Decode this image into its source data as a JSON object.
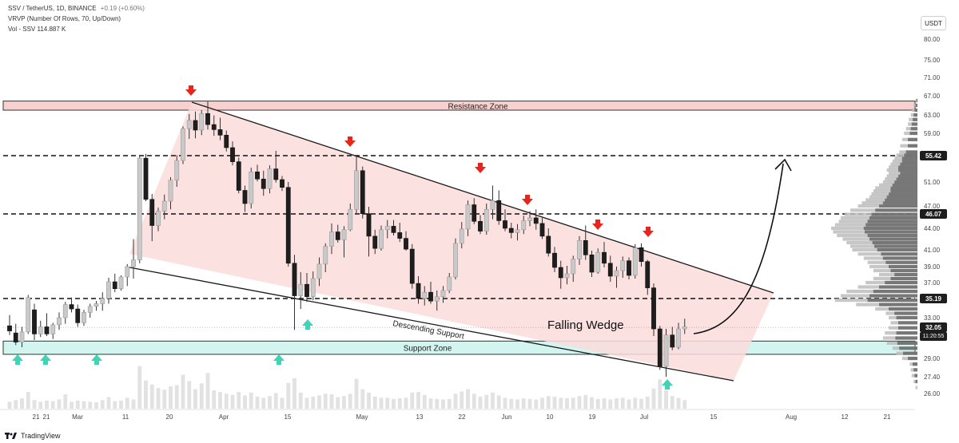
{
  "header": {
    "symbol_line": "SSV / TetherUS, 1D, BINANCE",
    "change": "+0.19 (+0.60%)",
    "vrvp_line": "VRVP (Number Of Rows, 70, Up/Down)",
    "vol_line": "Vol - SSV  114.887 K"
  },
  "currency_button": "USDT",
  "brand": "TradingView",
  "colors": {
    "bull": "#c9c9c9",
    "bear": "#1e1e1e",
    "resistance_fill": "#f8d0d0",
    "resistance_border": "#d9534f",
    "support_fill": "#d2f5f0",
    "support_border": "#1a1a1a",
    "wedge_fill": "#fbdcdc",
    "down_arrow": "#e8251d",
    "up_arrow": "#3ed4b5",
    "price_badge": "#1e1e1e"
  },
  "chart_data": {
    "type": "candlestick",
    "y_axis_ticks": [
      "80.00",
      "75.00",
      "71.00",
      "67.00",
      "63.00",
      "59.00",
      "55.42",
      "51.00",
      "47.00",
      "46.07",
      "44.00",
      "41.00",
      "39.00",
      "37.00",
      "35.19",
      "33.00",
      "32.05",
      "29.00",
      "27.40",
      "26.00"
    ],
    "x_axis_ticks": [
      "21",
      "21",
      "Mar",
      "11",
      "20",
      "Apr",
      "15",
      "May",
      "13",
      "22",
      "Jun",
      "10",
      "19",
      "Jul",
      "15",
      "Aug",
      "12",
      "21"
    ],
    "ylim": [
      25,
      83
    ],
    "price_levels": [
      55.42,
      46.07,
      35.19
    ],
    "current_price": "32.05",
    "countdown": "11:20:55",
    "zones": [
      {
        "label": "Resistance Zone",
        "low": 64,
        "high": 65.9
      },
      {
        "label": "Support Zone",
        "low": 29.4,
        "high": 30.7
      }
    ],
    "annotations": {
      "pattern": "Falling Wedge",
      "support_line": "Descending Support"
    },
    "ohlc": [
      [
        32.2,
        33.3,
        31.3,
        31.7
      ],
      [
        31.5,
        32.4,
        30.3,
        30.6
      ],
      [
        30.6,
        32.1,
        30.1,
        31.6
      ],
      [
        31.6,
        35.6,
        31.4,
        35.3
      ],
      [
        33.9,
        34.6,
        30.8,
        31.4
      ],
      [
        31.4,
        32.7,
        31.1,
        32.1
      ],
      [
        32.1,
        33.5,
        31.2,
        31.4
      ],
      [
        31.4,
        32.5,
        30.9,
        32.3
      ],
      [
        32.3,
        33.6,
        31.8,
        33.0
      ],
      [
        33.0,
        34.8,
        32.4,
        34.5
      ],
      [
        34.5,
        35.3,
        33.6,
        34.0
      ],
      [
        34.0,
        34.5,
        32.1,
        32.5
      ],
      [
        32.5,
        33.9,
        32.2,
        33.6
      ],
      [
        33.6,
        34.6,
        33.0,
        34.3
      ],
      [
        34.3,
        34.9,
        33.8,
        34.6
      ],
      [
        34.6,
        35.9,
        33.8,
        35.2
      ],
      [
        35.2,
        37.6,
        34.6,
        37.1
      ],
      [
        37.1,
        38.1,
        35.9,
        36.3
      ],
      [
        36.3,
        37.9,
        36.1,
        37.7
      ],
      [
        37.7,
        39.3,
        36.6,
        39.0
      ],
      [
        39.0,
        42.5,
        37.5,
        39.8
      ],
      [
        39.8,
        55.4,
        39.4,
        55.0
      ],
      [
        55.0,
        55.7,
        47.8,
        48.1
      ],
      [
        48.1,
        49.0,
        42.2,
        44.4
      ],
      [
        44.4,
        46.8,
        43.6,
        46.4
      ],
      [
        46.4,
        48.9,
        45.3,
        47.8
      ],
      [
        47.8,
        51.8,
        46.6,
        51.3
      ],
      [
        51.3,
        55.5,
        50.2,
        54.6
      ],
      [
        54.6,
        60.5,
        54.0,
        60.0
      ],
      [
        60.0,
        63.2,
        58.1,
        61.8
      ],
      [
        61.8,
        63.7,
        58.2,
        59.7
      ],
      [
        59.7,
        64.0,
        58.7,
        63.3
      ],
      [
        63.3,
        65.8,
        59.8,
        60.9
      ],
      [
        60.9,
        62.9,
        58.6,
        59.8
      ],
      [
        59.8,
        62.4,
        57.9,
        58.7
      ],
      [
        58.7,
        59.6,
        56.1,
        56.7
      ],
      [
        56.7,
        57.7,
        53.8,
        54.4
      ],
      [
        54.4,
        55.1,
        49.1,
        49.6
      ],
      [
        49.6,
        50.4,
        46.3,
        47.4
      ],
      [
        47.4,
        53.4,
        46.7,
        52.7
      ],
      [
        52.7,
        53.9,
        51.1,
        51.5
      ],
      [
        51.5,
        52.9,
        48.7,
        49.9
      ],
      [
        49.9,
        53.8,
        49.1,
        53.2
      ],
      [
        53.2,
        56.2,
        50.9,
        51.4
      ],
      [
        51.4,
        52.0,
        49.5,
        50.1
      ],
      [
        50.1,
        51.0,
        39.0,
        39.4
      ],
      [
        39.4,
        40.4,
        31.8,
        35.5
      ],
      [
        35.5,
        38.3,
        34.0,
        36.8
      ],
      [
        36.8,
        38.2,
        34.8,
        35.4
      ],
      [
        35.4,
        38.4,
        35.0,
        37.5
      ],
      [
        37.5,
        40.1,
        36.6,
        39.3
      ],
      [
        39.3,
        41.9,
        38.3,
        41.5
      ],
      [
        41.5,
        44.7,
        40.5,
        43.5
      ],
      [
        43.5,
        44.5,
        42.0,
        42.4
      ],
      [
        42.4,
        44.3,
        40.1,
        43.8
      ],
      [
        43.8,
        47.4,
        43.6,
        46.6
      ],
      [
        46.6,
        55.4,
        46.0,
        52.9
      ],
      [
        52.9,
        53.6,
        45.4,
        46.1
      ],
      [
        46.1,
        46.9,
        40.2,
        42.9
      ],
      [
        42.9,
        43.8,
        40.5,
        41.2
      ],
      [
        41.2,
        44.4,
        40.9,
        43.8
      ],
      [
        43.8,
        45.2,
        42.6,
        44.3
      ],
      [
        44.3,
        45.2,
        43.0,
        43.4
      ],
      [
        43.4,
        44.8,
        42.1,
        42.6
      ],
      [
        42.6,
        43.6,
        40.9,
        41.1
      ],
      [
        41.1,
        41.8,
        36.3,
        36.9
      ],
      [
        36.9,
        37.8,
        34.6,
        35.2
      ],
      [
        35.2,
        36.6,
        34.4,
        35.9
      ],
      [
        35.9,
        37.1,
        34.6,
        34.9
      ],
      [
        34.9,
        36.1,
        33.8,
        35.4
      ],
      [
        35.4,
        36.6,
        34.7,
        36.1
      ],
      [
        36.1,
        38.2,
        35.8,
        37.7
      ],
      [
        37.7,
        42.6,
        37.4,
        41.9
      ],
      [
        41.9,
        44.9,
        41.2,
        43.9
      ],
      [
        43.9,
        47.9,
        42.9,
        47.2
      ],
      [
        47.2,
        48.3,
        44.6,
        45.0
      ],
      [
        45.0,
        45.9,
        43.2,
        43.6
      ],
      [
        43.6,
        47.4,
        43.1,
        46.6
      ],
      [
        46.6,
        50.4,
        45.3,
        47.9
      ],
      [
        47.9,
        49.6,
        44.5,
        45.1
      ],
      [
        45.1,
        46.6,
        43.6,
        44.0
      ],
      [
        44.0,
        44.8,
        42.6,
        43.4
      ],
      [
        43.4,
        44.6,
        42.3,
        43.8
      ],
      [
        43.8,
        45.8,
        43.2,
        45.1
      ],
      [
        45.1,
        46.4,
        44.3,
        45.5
      ],
      [
        45.5,
        46.6,
        43.8,
        44.7
      ],
      [
        44.7,
        45.5,
        42.5,
        42.9
      ],
      [
        42.9,
        44.0,
        40.2,
        40.6
      ],
      [
        40.6,
        41.4,
        38.3,
        38.9
      ],
      [
        38.9,
        39.7,
        36.3,
        37.6
      ],
      [
        37.6,
        39.1,
        36.8,
        38.1
      ],
      [
        38.1,
        40.3,
        37.1,
        39.9
      ],
      [
        39.9,
        42.9,
        39.2,
        42.3
      ],
      [
        42.3,
        44.4,
        39.8,
        40.4
      ],
      [
        40.4,
        40.9,
        37.7,
        38.3
      ],
      [
        38.3,
        41.2,
        38.1,
        40.7
      ],
      [
        40.7,
        42.1,
        38.9,
        39.4
      ],
      [
        39.4,
        40.3,
        37.1,
        37.8
      ],
      [
        37.8,
        39.0,
        36.4,
        38.5
      ],
      [
        38.5,
        40.2,
        37.6,
        39.7
      ],
      [
        39.7,
        40.1,
        37.4,
        37.9
      ],
      [
        37.9,
        41.8,
        37.5,
        41.3
      ],
      [
        41.3,
        41.9,
        39.0,
        39.6
      ],
      [
        39.6,
        39.8,
        35.6,
        36.4
      ],
      [
        36.4,
        36.9,
        31.2,
        31.9
      ],
      [
        31.9,
        32.2,
        28.0,
        28.3
      ],
      [
        28.3,
        31.9,
        27.4,
        31.3
      ],
      [
        31.3,
        32.1,
        29.8,
        30.1
      ],
      [
        30.1,
        32.5,
        29.9,
        31.9
      ],
      [
        31.9,
        32.9,
        31.4,
        32.1
      ]
    ],
    "volume": [
      1.2,
      1.5,
      1.8,
      2.9,
      1.5,
      1.2,
      1.4,
      1.3,
      1.6,
      2.5,
      1.2,
      1.4,
      1.3,
      1.2,
      1.1,
      1.5,
      2.0,
      1.3,
      1.4,
      1.9,
      1.6,
      7.4,
      4.9,
      4.2,
      3.6,
      3.3,
      3.9,
      4.1,
      5.9,
      4.8,
      3.4,
      4.4,
      6.2,
      3.2,
      2.9,
      2.6,
      2.4,
      2.9,
      2.3,
      2.8,
      2.1,
      1.9,
      2.2,
      2.7,
      1.9,
      4.5,
      5.3,
      2.8,
      1.9,
      2.1,
      2.3,
      2.6,
      2.5,
      2.0,
      2.2,
      2.6,
      5.2,
      3.4,
      2.8,
      2.1,
      1.9,
      1.9,
      1.7,
      1.8,
      1.9,
      2.8,
      2.9,
      2.4,
      1.8,
      1.7,
      1.6,
      1.7,
      2.6,
      3.0,
      3.4,
      2.6,
      2.1,
      2.4,
      2.8,
      2.3,
      1.9,
      1.7,
      1.6,
      1.8,
      1.7,
      1.6,
      1.9,
      2.2,
      2.1,
      1.9,
      1.8,
      1.9,
      2.2,
      2.4,
      2.0,
      1.7,
      1.8,
      1.6,
      1.8,
      1.9,
      1.6,
      1.9,
      1.7,
      2.1,
      3.5,
      5.1,
      3.2,
      2.2,
      1.9,
      1.5
    ],
    "volume_profile": [
      [
        26.5,
        0.2,
        0.0
      ],
      [
        27.0,
        0.4,
        0.2
      ],
      [
        27.5,
        0.6,
        0.3
      ],
      [
        28.0,
        0.7,
        0.4
      ],
      [
        28.5,
        0.8,
        0.5
      ],
      [
        29.0,
        1.6,
        1.0
      ],
      [
        29.5,
        2.2,
        1.5
      ],
      [
        30.0,
        2.6,
        1.9
      ],
      [
        30.5,
        3.2,
        2.1
      ],
      [
        31.0,
        3.6,
        2.3
      ],
      [
        31.5,
        3.4,
        2.2
      ],
      [
        32.0,
        3.0,
        2.0
      ],
      [
        32.5,
        2.8,
        2.0
      ],
      [
        33.0,
        3.0,
        2.2
      ],
      [
        33.5,
        3.3,
        2.4
      ],
      [
        34.0,
        4.4,
        3.0
      ],
      [
        34.5,
        6.4,
        4.0
      ],
      [
        35.0,
        8.6,
        5.2
      ],
      [
        35.5,
        8.0,
        5.0
      ],
      [
        36.0,
        7.4,
        4.6
      ],
      [
        36.5,
        6.2,
        4.0
      ],
      [
        37.0,
        5.4,
        3.4
      ],
      [
        37.5,
        4.6,
        2.8
      ],
      [
        38.0,
        4.0,
        2.4
      ],
      [
        38.5,
        4.6,
        2.8
      ],
      [
        39.0,
        5.0,
        3.0
      ],
      [
        39.5,
        5.2,
        3.3
      ],
      [
        40.0,
        5.6,
        3.6
      ],
      [
        40.5,
        6.2,
        3.8
      ],
      [
        41.0,
        6.8,
        4.2
      ],
      [
        41.5,
        7.0,
        4.5
      ],
      [
        42.0,
        7.4,
        4.7
      ],
      [
        42.5,
        7.8,
        5.0
      ],
      [
        43.0,
        8.4,
        5.2
      ],
      [
        43.5,
        8.8,
        5.5
      ],
      [
        44.0,
        9.0,
        5.6
      ],
      [
        44.5,
        8.6,
        5.4
      ],
      [
        45.0,
        8.2,
        5.2
      ],
      [
        45.5,
        8.0,
        5.0
      ],
      [
        46.0,
        7.6,
        4.8
      ],
      [
        46.5,
        7.0,
        4.4
      ],
      [
        47.0,
        6.2,
        4.0
      ],
      [
        47.5,
        5.8,
        3.6
      ],
      [
        48.0,
        5.4,
        3.4
      ],
      [
        48.5,
        5.0,
        3.2
      ],
      [
        49.0,
        4.8,
        3.0
      ],
      [
        49.5,
        4.6,
        2.8
      ],
      [
        50.0,
        4.4,
        2.8
      ],
      [
        50.5,
        4.0,
        2.6
      ],
      [
        51.0,
        3.6,
        2.4
      ],
      [
        51.5,
        3.4,
        2.2
      ],
      [
        52.0,
        3.2,
        2.0
      ],
      [
        52.5,
        3.0,
        1.8
      ],
      [
        53.0,
        3.2,
        2.0
      ],
      [
        53.5,
        3.0,
        2.0
      ],
      [
        54.0,
        2.8,
        1.8
      ],
      [
        54.5,
        2.6,
        1.6
      ],
      [
        55.0,
        2.4,
        1.6
      ],
      [
        55.5,
        2.2,
        1.4
      ],
      [
        56.0,
        1.9,
        1.2
      ],
      [
        57.0,
        1.8,
        1.0
      ],
      [
        58.0,
        1.6,
        1.0
      ],
      [
        59.0,
        1.4,
        0.8
      ],
      [
        60.0,
        1.2,
        0.7
      ],
      [
        61.0,
        1.0,
        0.6
      ],
      [
        62.0,
        0.9,
        0.5
      ],
      [
        63.0,
        0.7,
        0.4
      ],
      [
        64.0,
        0.6,
        0.3
      ],
      [
        65.0,
        0.4,
        0.2
      ],
      [
        66.0,
        0.2,
        0.1
      ]
    ]
  }
}
